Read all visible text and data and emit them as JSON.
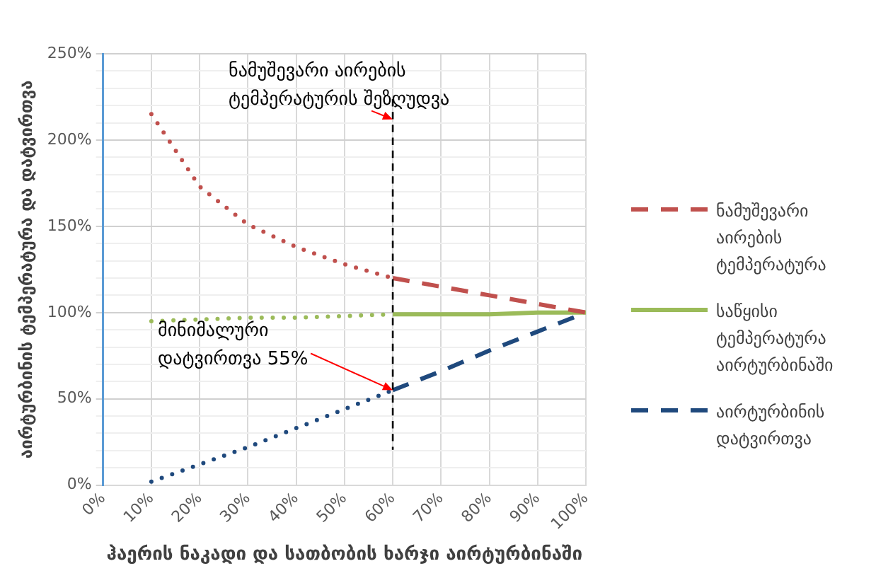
{
  "chart_data": {
    "type": "line",
    "xlabel": "ჰაერის ნაკადი და სათბობის ხარჯი აირტურბინაში",
    "ylabel": "აირტურბინის ტემპერატურა და დატვირთვა",
    "x": [
      10,
      20,
      30,
      40,
      50,
      60,
      70,
      80,
      90,
      100
    ],
    "series": [
      {
        "name": "ნამუშევარი აირების ტემპერატურა",
        "color": "#c0504d",
        "line_style": "dashed",
        "values": [
          215,
          173,
          151,
          138,
          128,
          120,
          115,
          110,
          105,
          100
        ]
      },
      {
        "name": "საწყისი ტემპერატურა აირტურბინაში",
        "color": "#9bbb59",
        "line_style": "solid",
        "values": [
          95,
          96,
          97,
          97,
          98,
          99,
          99,
          99,
          100,
          100
        ]
      },
      {
        "name": "აირტურბინის დატვირთვა",
        "color": "#1f497d",
        "line_style": "dashed",
        "values": [
          2,
          12,
          22,
          33,
          44,
          55,
          66,
          78,
          89,
          100
        ]
      }
    ],
    "marker": "none",
    "legend": "right",
    "grid": true,
    "xlim": [
      0,
      100
    ],
    "xticks": [
      {
        "value": 0,
        "label": "0%"
      },
      {
        "value": 10,
        "label": "10%"
      },
      {
        "value": 20,
        "label": "20%"
      },
      {
        "value": 30,
        "label": "30%"
      },
      {
        "value": 40,
        "label": "40%"
      },
      {
        "value": 50,
        "label": "50%"
      },
      {
        "value": 60,
        "label": "60%"
      },
      {
        "value": 70,
        "label": "70%"
      },
      {
        "value": 80,
        "label": "80%"
      },
      {
        "value": 90,
        "label": "90%"
      },
      {
        "value": 100,
        "label": "100%"
      }
    ],
    "ylim": [
      0,
      250
    ],
    "yticks": [
      {
        "value": 0,
        "label": "0%"
      },
      {
        "value": 10,
        "label": null
      },
      {
        "value": 20,
        "label": null
      },
      {
        "value": 30,
        "label": null
      },
      {
        "value": 40,
        "label": null
      },
      {
        "value": 50,
        "label": "50%"
      },
      {
        "value": 60,
        "label": null
      },
      {
        "value": 70,
        "label": null
      },
      {
        "value": 80,
        "label": null
      },
      {
        "value": 90,
        "label": null
      },
      {
        "value": 100,
        "label": "100%"
      },
      {
        "value": 110,
        "label": null
      },
      {
        "value": 120,
        "label": null
      },
      {
        "value": 130,
        "label": null
      },
      {
        "value": 140,
        "label": null
      },
      {
        "value": 150,
        "label": "150%"
      },
      {
        "value": 160,
        "label": null
      },
      {
        "value": 170,
        "label": null
      },
      {
        "value": 180,
        "label": null
      },
      {
        "value": 190,
        "label": null
      },
      {
        "value": 200,
        "label": "200%"
      },
      {
        "value": 210,
        "label": null
      },
      {
        "value": 220,
        "label": null
      },
      {
        "value": 230,
        "label": null
      },
      {
        "value": 240,
        "label": null
      },
      {
        "value": 250,
        "label": "250%"
      }
    ],
    "ref_lines": [
      {
        "axis": "x",
        "value": 60,
        "color": "#000000",
        "line_style": "dashed"
      }
    ],
    "annotations": [
      {
        "text": "ნამუშევარი აირების ტემპერატურის შეზღუდვა",
        "x": 60,
        "y": 212
      },
      {
        "text": "მინიმალური დატვირთვა 55%",
        "x": 60,
        "y": 55
      }
    ]
  }
}
